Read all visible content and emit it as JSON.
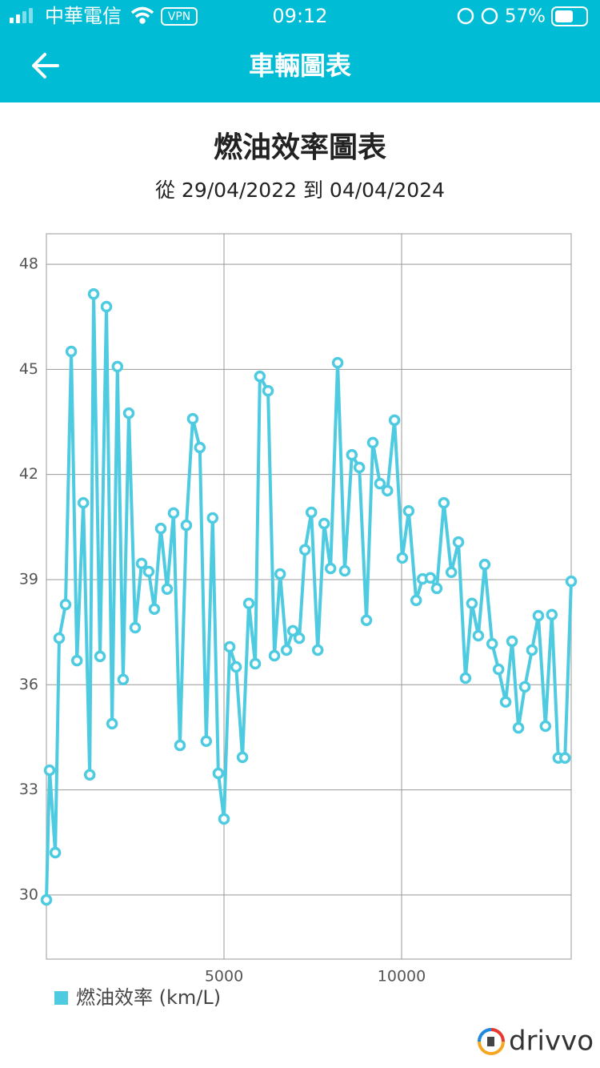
{
  "status_bar": {
    "carrier": "中華電信",
    "vpn": "VPN",
    "time": "09:12",
    "battery": "57%"
  },
  "header": {
    "title": "車輛圖表"
  },
  "chart_data": {
    "type": "line",
    "title": "燃油效率圖表",
    "subtitle": "從 29/04/2022 到 04/04/2024",
    "xlim": [
      0,
      14775
    ],
    "ylim": [
      28.17,
      48.87
    ],
    "xticks": [
      5000,
      10000
    ],
    "yticks": [
      30,
      33,
      36,
      39,
      42,
      45,
      48
    ],
    "grid": true,
    "legend": "bottom-left",
    "series": [
      {
        "name": "燃油效率 (km/L)",
        "color": "#4ecbe0",
        "x": [
          0,
          90,
          250,
          360,
          540,
          700,
          860,
          1040,
          1220,
          1330,
          1510,
          1690,
          1850,
          2000,
          2160,
          2320,
          2500,
          2680,
          2880,
          3040,
          3220,
          3400,
          3580,
          3760,
          3940,
          4120,
          4320,
          4500,
          4680,
          4840,
          5000,
          5160,
          5340,
          5520,
          5700,
          5880,
          6010,
          6240,
          6420,
          6580,
          6760,
          6940,
          7120,
          7280,
          7460,
          7640,
          7820,
          8000,
          8200,
          8400,
          8600,
          8810,
          9010,
          9190,
          9390,
          9600,
          9800,
          10020,
          10200,
          10410,
          10590,
          10810,
          10990,
          11190,
          11400,
          11600,
          11800,
          11980,
          12160,
          12340,
          12550,
          12730,
          12930,
          13110,
          13290,
          13470,
          13670,
          13850,
          14050,
          14230,
          14410,
          14600,
          14775
        ],
        "values": [
          29.86,
          33.56,
          31.21,
          37.33,
          38.29,
          45.51,
          36.69,
          41.19,
          33.43,
          47.15,
          36.81,
          46.79,
          34.89,
          45.08,
          36.15,
          43.75,
          37.63,
          39.46,
          39.23,
          38.16,
          40.46,
          38.73,
          40.9,
          34.27,
          40.55,
          43.59,
          42.77,
          34.39,
          40.76,
          33.47,
          32.17,
          37.08,
          36.51,
          33.93,
          38.32,
          36.6,
          44.8,
          44.39,
          36.83,
          39.16,
          36.99,
          37.54,
          37.33,
          39.85,
          40.92,
          36.99,
          40.6,
          39.32,
          45.19,
          39.25,
          42.56,
          42.2,
          37.84,
          42.91,
          41.74,
          41.54,
          43.55,
          39.62,
          40.96,
          38.41,
          39.02,
          39.05,
          38.75,
          41.19,
          39.21,
          40.07,
          36.19,
          38.32,
          37.4,
          39.43,
          37.17,
          36.44,
          35.51,
          37.24,
          34.77,
          35.94,
          36.99,
          37.97,
          34.82,
          38.0,
          33.91,
          33.91,
          38.95
        ]
      }
    ]
  },
  "footer": {
    "brand": "drivvo"
  }
}
